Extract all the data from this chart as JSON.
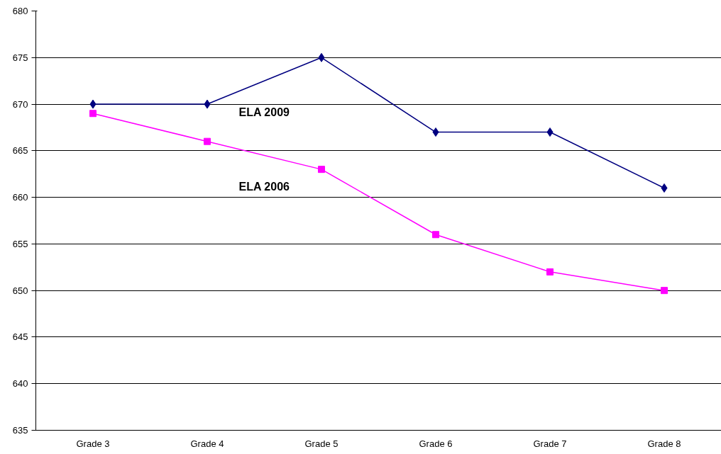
{
  "chart_data": {
    "type": "line",
    "categories": [
      "Grade 3",
      "Grade 4",
      "Grade 5",
      "Grade 6",
      "Grade 7",
      "Grade 8"
    ],
    "series": [
      {
        "name": "ELA 2009",
        "color": "#000080",
        "marker": "diamond",
        "values": [
          670,
          670,
          675,
          667,
          667,
          661
        ]
      },
      {
        "name": "ELA 2006",
        "color": "#ff00ff",
        "marker": "square",
        "values": [
          669,
          666,
          663,
          656,
          652,
          650
        ]
      }
    ],
    "ylim": [
      635,
      680
    ],
    "yticks": [
      635,
      640,
      645,
      650,
      655,
      660,
      665,
      670,
      675,
      680
    ],
    "grid": "y",
    "legend": false
  }
}
